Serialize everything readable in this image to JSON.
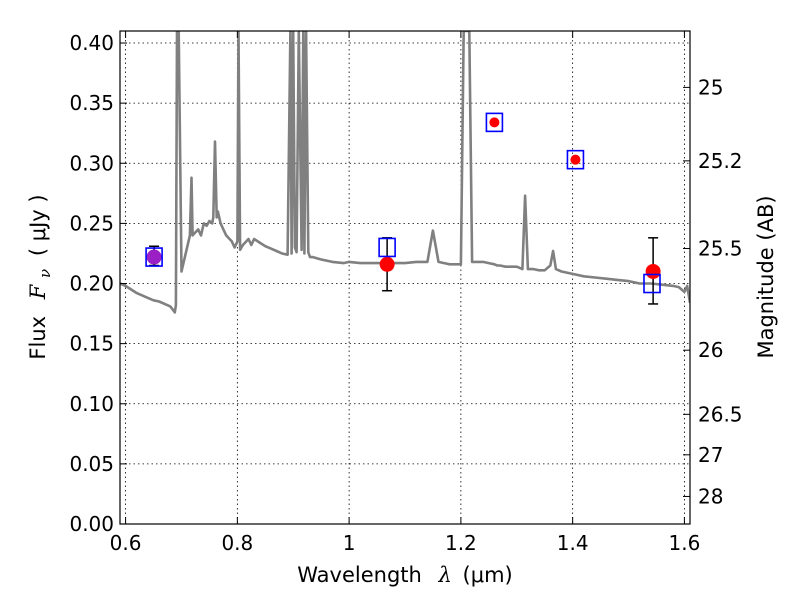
{
  "chart_data": {
    "type": "scatter",
    "xlabel_prefix": "Wavelength",
    "xlabel_symbol": "λ",
    "xlabel_unit": "(μm)",
    "ylabel_prefix": "Flux",
    "ylabel_symbol": "F",
    "ylabel_subscript": "ν",
    "ylabel_unit": "( μJy )",
    "y2label": "Magnitude (AB)",
    "xlim": [
      0.59,
      1.61
    ],
    "ylim": [
      0.0,
      0.41
    ],
    "grid": true,
    "x_ticks": [
      0.6,
      0.8,
      1.0,
      1.2,
      1.4,
      1.6
    ],
    "x_tick_labels": [
      "0.6",
      "0.8",
      "1",
      "1.2",
      "1.4",
      "1.6"
    ],
    "y_ticks": [
      0.0,
      0.05,
      0.1,
      0.15,
      0.2,
      0.25,
      0.3,
      0.35,
      0.4
    ],
    "y_tick_labels": [
      "0.00",
      "0.05",
      "0.10",
      "0.15",
      "0.20",
      "0.25",
      "0.30",
      "0.35",
      "0.40"
    ],
    "magnitude_ticks": [
      25,
      25.2,
      25.5,
      26,
      26.5,
      27,
      28
    ],
    "magnitude_tick_labels": [
      "25",
      "25.2",
      "25.5",
      "26",
      "26.5",
      "27",
      "28"
    ],
    "model_spectrum": {
      "color": "#808080",
      "x": [
        0.59,
        0.6,
        0.62,
        0.64,
        0.65,
        0.66,
        0.675,
        0.68,
        0.685,
        0.688,
        0.69,
        0.692,
        0.695,
        0.7,
        0.705,
        0.71,
        0.715,
        0.718,
        0.72,
        0.73,
        0.735,
        0.74,
        0.745,
        0.75,
        0.755,
        0.757,
        0.76,
        0.763,
        0.765,
        0.77,
        0.78,
        0.79,
        0.795,
        0.8,
        0.802,
        0.805,
        0.81,
        0.82,
        0.825,
        0.83,
        0.84,
        0.85,
        0.86,
        0.87,
        0.88,
        0.89,
        0.895,
        0.897,
        0.9,
        0.903,
        0.906,
        0.91,
        0.915,
        0.918,
        0.92,
        0.923,
        0.927,
        0.93,
        0.935,
        0.95,
        0.97,
        0.99,
        1.0,
        1.02,
        1.04,
        1.06,
        1.08,
        1.1,
        1.12,
        1.14,
        1.15,
        1.16,
        1.17,
        1.18,
        1.19,
        1.2,
        1.205,
        1.21,
        1.215,
        1.22,
        1.24,
        1.25,
        1.26,
        1.265,
        1.27,
        1.28,
        1.3,
        1.31,
        1.315,
        1.32,
        1.33,
        1.34,
        1.35,
        1.36,
        1.365,
        1.37,
        1.38,
        1.4,
        1.42,
        1.44,
        1.46,
        1.48,
        1.5,
        1.52,
        1.54,
        1.56,
        1.58,
        1.59,
        1.6,
        1.605,
        1.61
      ],
      "y": [
        0.2,
        0.198,
        0.192,
        0.188,
        0.186,
        0.185,
        0.182,
        0.181,
        0.178,
        0.176,
        0.182,
        0.41,
        0.41,
        0.21,
        0.22,
        0.23,
        0.24,
        0.288,
        0.24,
        0.245,
        0.24,
        0.25,
        0.248,
        0.252,
        0.25,
        0.255,
        0.318,
        0.255,
        0.26,
        0.25,
        0.24,
        0.235,
        0.23,
        0.235,
        0.41,
        0.228,
        0.232,
        0.237,
        0.232,
        0.237,
        0.234,
        0.231,
        0.229,
        0.227,
        0.225,
        0.224,
        0.41,
        0.225,
        0.41,
        0.23,
        0.226,
        0.41,
        0.228,
        0.41,
        0.225,
        0.41,
        0.226,
        0.222,
        0.222,
        0.22,
        0.218,
        0.217,
        0.218,
        0.217,
        0.217,
        0.217,
        0.217,
        0.217,
        0.218,
        0.218,
        0.244,
        0.218,
        0.217,
        0.216,
        0.216,
        0.216,
        0.41,
        0.41,
        0.41,
        0.218,
        0.218,
        0.217,
        0.216,
        0.215,
        0.215,
        0.214,
        0.214,
        0.212,
        0.273,
        0.212,
        0.212,
        0.211,
        0.211,
        0.215,
        0.227,
        0.212,
        0.21,
        0.208,
        0.206,
        0.205,
        0.204,
        0.203,
        0.202,
        0.2,
        0.2,
        0.199,
        0.198,
        0.197,
        0.193,
        0.198,
        0.184
      ]
    },
    "series": [
      {
        "name": "",
        "marker": "square",
        "edge_color": "#0000ff",
        "fill": "none",
        "x": [
          0.651,
          1.068,
          1.26,
          1.405,
          1.542
        ],
        "y": [
          0.222,
          0.23,
          0.334,
          0.303,
          0.2
        ]
      },
      {
        "name": "",
        "marker": "circle",
        "color": "#ff0000",
        "x": [
          0.651,
          1.068,
          1.26,
          1.405,
          1.544
        ],
        "y": [
          0.222,
          0.216,
          0.334,
          0.303,
          0.21
        ],
        "yerr_low": [
          0.215,
          0.194,
          null,
          null,
          0.183
        ],
        "yerr_high": [
          0.231,
          0.238,
          null,
          null,
          0.238
        ]
      }
    ]
  }
}
